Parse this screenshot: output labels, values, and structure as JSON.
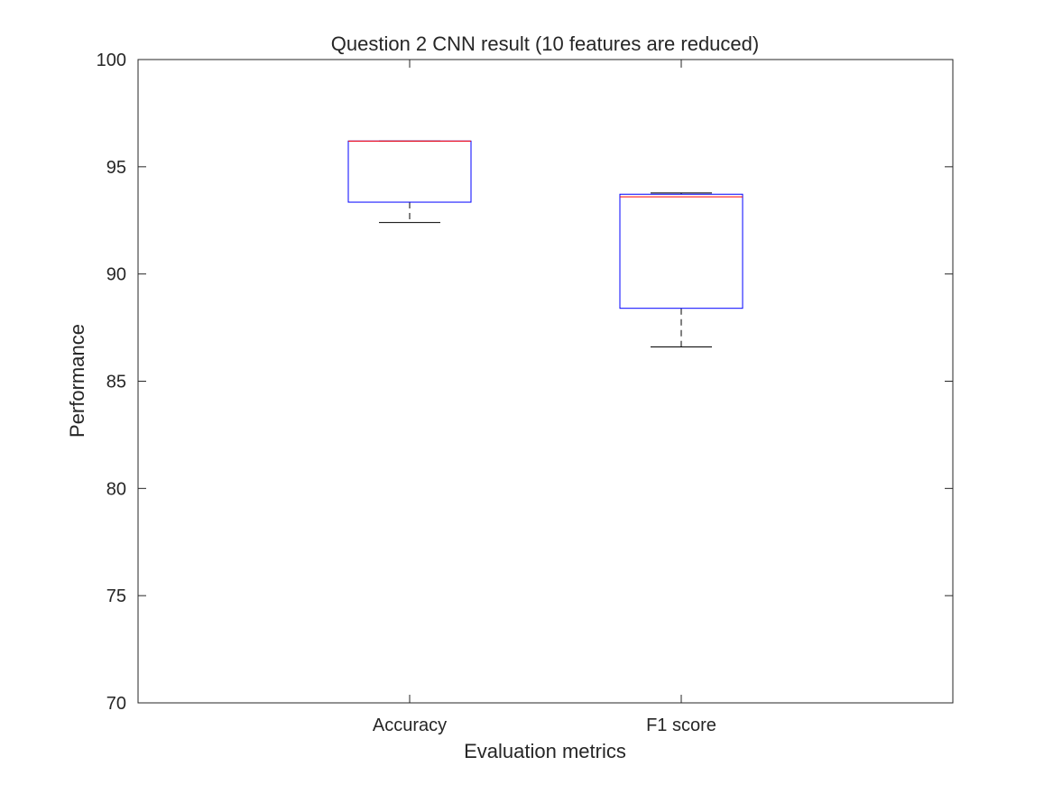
{
  "chart_data": {
    "type": "boxplot",
    "title": "Question 2 CNN result (10 features are reduced)",
    "xlabel": "Evaluation metrics",
    "ylabel": "Performance",
    "ylim": [
      70,
      100
    ],
    "yticks": [
      "70",
      "75",
      "80",
      "85",
      "90",
      "95",
      "100"
    ],
    "categories": [
      "Accuracy",
      "F1 score"
    ],
    "boxes": [
      {
        "category": "Accuracy",
        "min": 92.4,
        "q1": 93.35,
        "median": 96.2,
        "q3": 96.2,
        "max": 96.2
      },
      {
        "category": "F1 score",
        "min": 86.6,
        "q1": 88.4,
        "median": 93.6,
        "q3": 93.72,
        "max": 93.78
      }
    ],
    "grid": false,
    "colors": {
      "box": "#0000ff",
      "median": "#ff0000",
      "whisker": "#000000",
      "axes": "#262626"
    }
  }
}
